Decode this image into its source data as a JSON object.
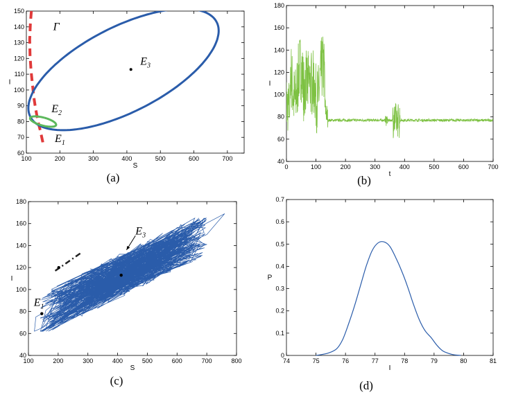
{
  "chart_data": [
    {
      "panel": "a",
      "type": "line",
      "caption": "(a)",
      "xlabel": "S",
      "ylabel": "I",
      "xlim": [
        100,
        750
      ],
      "ylim": [
        60,
        150
      ],
      "xticks": [
        100,
        200,
        300,
        400,
        500,
        600,
        700
      ],
      "yticks": [
        60,
        70,
        80,
        90,
        100,
        110,
        120,
        130,
        140,
        150
      ],
      "curves": [
        {
          "label": "Γ",
          "style": "dashed",
          "color": "#e03a3a",
          "x": [
            115,
            112,
            110,
            111,
            114,
            118,
            122,
            127,
            132,
            137,
            142,
            146,
            149,
            150,
            148
          ],
          "y": [
            150,
            142,
            132,
            122,
            112,
            104,
            96,
            89,
            83,
            78,
            74,
            70,
            67,
            65,
            64
          ]
        },
        {
          "label": "blue limit cycle",
          "style": "solid",
          "color": "#2a5caa",
          "ellipse": {
            "cx": 390,
            "cy": 113,
            "rx": 312,
            "ry": 27,
            "angle": 27
          }
        },
        {
          "label": "green limit cycle",
          "style": "solid",
          "color": "#5cb85c",
          "ellipse": {
            "cx": 150,
            "cy": 80,
            "rx": 12,
            "ry": 8.5,
            "angle": 75
          }
        }
      ],
      "points": [
        {
          "x": 412,
          "y": 113
        }
      ],
      "annotations": [
        {
          "text": "Γ",
          "x": 180,
          "y": 138
        },
        {
          "text": "E",
          "sub": "3",
          "x": 440,
          "y": 116
        },
        {
          "text": "E",
          "sub": "2",
          "x": 175,
          "y": 86
        },
        {
          "text": "E",
          "sub": "1",
          "x": 185,
          "y": 67
        }
      ]
    },
    {
      "panel": "b",
      "type": "line",
      "caption": "(b)",
      "xlabel": "t",
      "ylabel": "I",
      "xlim": [
        0,
        700
      ],
      "ylim": [
        40,
        180
      ],
      "xticks": [
        0,
        100,
        200,
        300,
        400,
        500,
        600,
        700
      ],
      "yticks": [
        40,
        60,
        80,
        100,
        120,
        140,
        160,
        180
      ],
      "series": [
        {
          "color": "#7dc142",
          "phases": [
            [
              0,
              130,
              30
            ],
            [
              130,
              700,
              1.2
            ]
          ],
          "bursts": [
            [
              335,
              345,
              5
            ],
            [
              360,
              385,
              16
            ]
          ],
          "baseline": 77,
          "early_level": 110
        }
      ]
    },
    {
      "panel": "c",
      "type": "line",
      "caption": "(c)",
      "xlabel": "S",
      "ylabel": "I",
      "xlim": [
        100,
        800
      ],
      "ylim": [
        40,
        180
      ],
      "xticks": [
        100,
        200,
        300,
        400,
        500,
        600,
        700,
        800
      ],
      "yticks": [
        40,
        60,
        80,
        100,
        120,
        140,
        160,
        180
      ],
      "series": [
        {
          "color": "#2a5caa",
          "center": [
            412,
            113
          ],
          "slope": 0.135
        }
      ],
      "dashdot": {
        "x": [
          190,
          275
        ],
        "y": [
          117,
          133
        ],
        "color": "#222222"
      },
      "points": [
        {
          "x": 145,
          "y": 78
        },
        {
          "x": 412,
          "y": 113
        },
        {
          "x": 202,
          "y": 120
        }
      ],
      "annotations": [
        {
          "text": "E",
          "sub": "3",
          "x": 460,
          "y": 150
        },
        {
          "text": "E",
          "sub": "1",
          "x": 118,
          "y": 85
        }
      ],
      "arrow": {
        "from": [
          460,
          149
        ],
        "to": [
          430,
          136
        ]
      }
    },
    {
      "panel": "d",
      "type": "line",
      "caption": "(d)",
      "xlabel": "I",
      "ylabel": "P",
      "xlim": [
        74,
        81
      ],
      "ylim": [
        0,
        0.7
      ],
      "xticks": [
        74,
        75,
        76,
        77,
        78,
        79,
        80,
        81
      ],
      "yticks": [
        0,
        0.1,
        0.2,
        0.3,
        0.4,
        0.5,
        0.6,
        0.7
      ],
      "series": [
        {
          "color": "#2a5caa",
          "x": [
            75.0,
            75.4,
            75.7,
            75.9,
            76.1,
            76.3,
            76.5,
            76.7,
            76.9,
            77.1,
            77.3,
            77.5,
            77.7,
            77.9,
            78.1,
            78.3,
            78.5,
            78.7,
            78.9,
            79.1,
            79.3,
            79.6,
            79.9
          ],
          "y": [
            0.0,
            0.01,
            0.03,
            0.07,
            0.14,
            0.22,
            0.31,
            0.4,
            0.47,
            0.505,
            0.51,
            0.49,
            0.44,
            0.38,
            0.31,
            0.23,
            0.16,
            0.11,
            0.08,
            0.045,
            0.02,
            0.005,
            0.0
          ]
        }
      ]
    }
  ]
}
